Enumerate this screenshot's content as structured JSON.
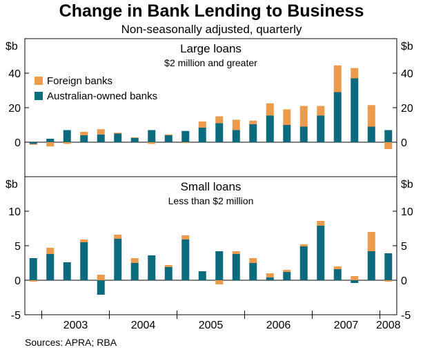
{
  "title": "Change in Bank Lending to Business",
  "subtitle": "Non-seasonally adjusted, quarterly",
  "source": "Sources: APRA; RBA",
  "colors": {
    "foreign": "#ec9a4c",
    "australian": "#0c6a7f"
  },
  "chart_data": {
    "type": "bar",
    "stacked": true,
    "unit": "$b",
    "x_labels": [
      "2003",
      "2004",
      "2005",
      "2006",
      "2007",
      "2008"
    ],
    "quarters": [
      "2002 Q4",
      "2003 Q1",
      "2003 Q2",
      "2003 Q3",
      "2003 Q4",
      "2004 Q1",
      "2004 Q2",
      "2004 Q3",
      "2004 Q4",
      "2005 Q1",
      "2005 Q2",
      "2005 Q3",
      "2005 Q4",
      "2006 Q1",
      "2006 Q2",
      "2006 Q3",
      "2006 Q4",
      "2007 Q1",
      "2007 Q2",
      "2007 Q3",
      "2007 Q4",
      "2008 Q1"
    ],
    "panels": [
      {
        "id": "large",
        "title": "Large loans",
        "subtitle": "$2 million and greater",
        "ylim": [
          -20,
          60
        ],
        "yticks": [
          0,
          20,
          40
        ],
        "legend": {
          "placement": "top-left",
          "entries": [
            "Foreign banks",
            "Australian-owned banks"
          ]
        },
        "series": [
          {
            "name": "Australian-owned banks",
            "color_key": "australian",
            "values": [
              -1.0,
              2.0,
              7.0,
              4.0,
              4.5,
              5.0,
              2.5,
              7.0,
              4.0,
              6.5,
              8.5,
              11.0,
              7.0,
              10.5,
              15.5,
              10.0,
              9.0,
              15.5,
              29.0,
              37.0,
              9.0,
              7.0
            ]
          },
          {
            "name": "Foreign banks",
            "color_key": "foreign",
            "values": [
              -0.5,
              -2.5,
              -1.0,
              2.0,
              3.0,
              0.5,
              0.3,
              -1.0,
              0.5,
              -0.5,
              3.5,
              4.0,
              6.0,
              2.0,
              7.0,
              9.0,
              12.0,
              5.5,
              15.5,
              6.0,
              12.5,
              -4.0
            ]
          }
        ]
      },
      {
        "id": "small",
        "title": "Small loans",
        "subtitle": "Less than $2 million",
        "ylim": [
          -5,
          15
        ],
        "yticks": [
          -5,
          0,
          5,
          10
        ],
        "series": [
          {
            "name": "Australian-owned banks",
            "color_key": "australian",
            "values": [
              3.2,
              3.8,
              2.6,
              5.5,
              -2.1,
              6.0,
              2.5,
              3.6,
              1.9,
              5.9,
              1.3,
              4.2,
              3.8,
              2.5,
              0.4,
              1.2,
              4.9,
              7.9,
              1.6,
              -0.4,
              4.2,
              3.9
            ]
          },
          {
            "name": "Foreign banks",
            "color_key": "foreign",
            "values": [
              -0.2,
              0.9,
              0.0,
              0.4,
              0.8,
              0.6,
              0.7,
              0.0,
              0.3,
              0.6,
              0.0,
              -0.6,
              0.4,
              0.7,
              0.6,
              0.3,
              0.3,
              0.7,
              0.4,
              0.6,
              2.8,
              -0.2
            ]
          }
        ]
      }
    ]
  }
}
